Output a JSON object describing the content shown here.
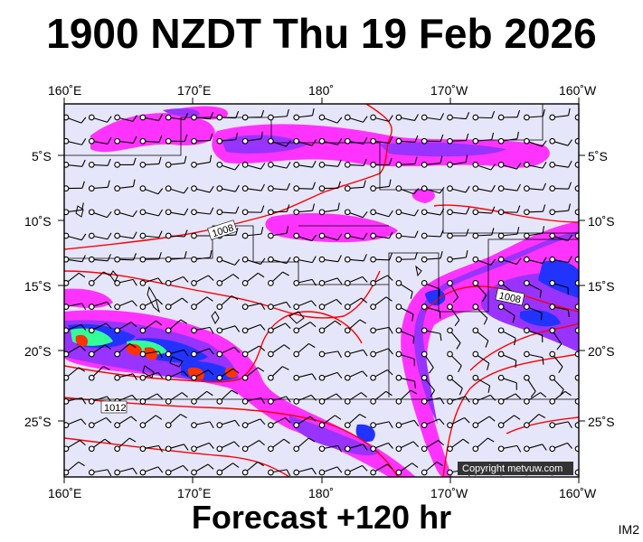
{
  "title": "1900 NZDT Thu 19 Feb 2026",
  "footer": "Forecast +120 hr",
  "image_code": "IM2",
  "copyright": "Copyright metvuw.com",
  "lon_labels": [
    "160˚E",
    "170˚E",
    "180˚",
    "170˚W",
    "160˚W"
  ],
  "lat_labels": [
    "5˚S",
    "10˚S",
    "15˚S",
    "20˚S",
    "25˚S"
  ],
  "isobar_labels": [
    "1008",
    "1008",
    "1012"
  ],
  "colors": {
    "ocean": "#e6e6fa",
    "rain_light": "#ff33ff",
    "rain_medium": "#9933ff",
    "rain_heavy": "#2233ff",
    "rain_very_heavy": "#33ff99",
    "rain_extreme": "#ff3300",
    "isobar": "#ff0000",
    "coast": "#000000"
  }
}
